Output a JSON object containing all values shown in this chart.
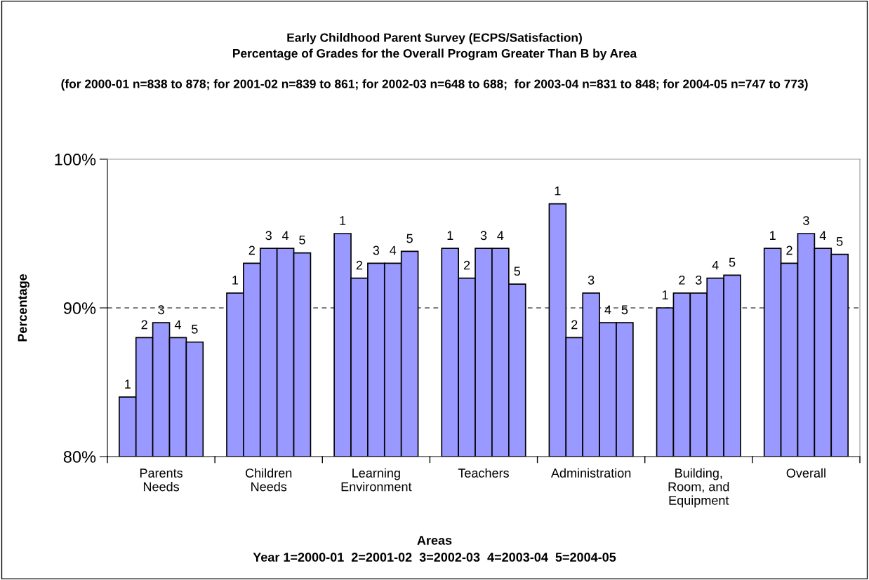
{
  "chart_data": {
    "type": "bar",
    "title": "Early Childhood Parent Survey (ECPS/Satisfaction)\nPercentage of Grades for the Overall Program Greater Than B by Area",
    "subtitle": "(for 2000-01 n=838 to 878; for 2001-02 n=839 to 861; for 2002-03 n=648 to 688;  for 2003-04 n=831 to 848; for 2004-05 n=747 to 773)",
    "xlabel": "Areas",
    "ylabel": "Percentage",
    "annotations": [
      "Year 1=2000-01  2=2001-02  3=2002-03  4=2003-04  5=2004-05"
    ],
    "categories": [
      "Parents\nNeeds",
      "Children\nNeeds",
      "Learning\nEnvironment",
      "Teachers",
      "Administration",
      "Building,\nRoom, and\nEquipment",
      "Overall"
    ],
    "series": [
      {
        "name": "1",
        "color": "#9999ff",
        "values": [
          84,
          91,
          95,
          94,
          97,
          90,
          94
        ]
      },
      {
        "name": "2",
        "color": "#9999ff",
        "values": [
          88,
          93,
          92,
          92,
          88,
          91,
          93
        ]
      },
      {
        "name": "3",
        "color": "#9999ff",
        "values": [
          89,
          94,
          93,
          94,
          91,
          91,
          95
        ]
      },
      {
        "name": "4",
        "color": "#9999ff",
        "values": [
          88,
          94,
          93,
          94,
          89,
          92,
          94
        ]
      },
      {
        "name": "5",
        "color": "#9999ff",
        "values": [
          87.7,
          93.7,
          93.8,
          91.6,
          89,
          92.2,
          93.6
        ]
      }
    ],
    "ylim": [
      80,
      100
    ],
    "yticks": [
      {
        "value": 80,
        "label": "80%"
      },
      {
        "value": 90,
        "label": "90%"
      },
      {
        "value": 100,
        "label": "100%"
      }
    ],
    "ref_lines": [
      {
        "axis": "y",
        "value": 90,
        "label": null,
        "color": "#000000",
        "line_style": "dashed"
      }
    ],
    "grid": false,
    "legend": false
  }
}
